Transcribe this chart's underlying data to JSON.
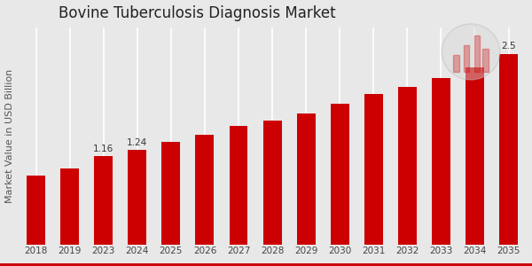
{
  "title": "Bovine Tuberculosis Diagnosis Market",
  "ylabel": "Market Value in USD Billion",
  "categories": [
    "2018",
    "2019",
    "2023",
    "2024",
    "2025",
    "2026",
    "2027",
    "2028",
    "2029",
    "2030",
    "2031",
    "2032",
    "2033",
    "2034",
    "2035"
  ],
  "values": [
    0.9,
    1.0,
    1.16,
    1.24,
    1.34,
    1.44,
    1.55,
    1.62,
    1.72,
    1.85,
    1.97,
    2.07,
    2.18,
    2.32,
    2.5
  ],
  "bar_color": "#cc0000",
  "label_indices": [
    2,
    3,
    14
  ],
  "label_texts": [
    "1.16",
    "1.24",
    "2.5"
  ],
  "background_color": "#e8e8e8",
  "ylim": [
    0,
    2.85
  ],
  "title_fontsize": 12,
  "ylabel_fontsize": 8,
  "tick_fontsize": 7.5,
  "bar_width": 0.55,
  "bottom_border_color": "#cc0000",
  "grid_color": "#ffffff"
}
